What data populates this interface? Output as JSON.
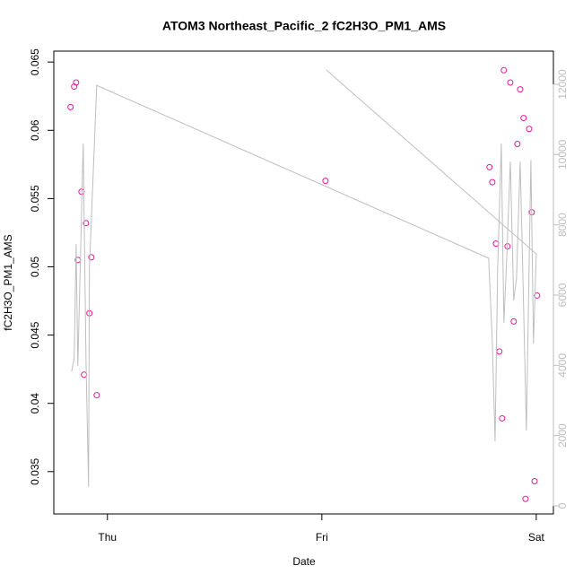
{
  "chart_data": {
    "type": "scatter",
    "title": "ATOM3 Northeast_Pacific_2 fC2H3O_PM1_AMS",
    "xlabel": "Date",
    "ylabel": "fC2H3O_PM1_AMS",
    "xlim": [
      -0.25,
      2.08
    ],
    "xticks": [
      {
        "value": 0,
        "label": "Thu"
      },
      {
        "value": 1,
        "label": "Fri"
      },
      {
        "value": 2,
        "label": "Sat"
      }
    ],
    "ylim": [
      0.0319,
      0.0658
    ],
    "yticks": [
      0.035,
      0.04,
      0.045,
      0.05,
      0.055,
      0.06,
      0.065
    ],
    "y2lim": [
      -230,
      12945
    ],
    "y2ticks": [
      0,
      2000,
      4000,
      6000,
      8000,
      10000,
      12000
    ],
    "y2_color": "#bebebe",
    "series": [
      {
        "type": "scatter",
        "color": "#e6199c",
        "x": [
          -0.172,
          -0.155,
          -0.146,
          -0.138,
          -0.121,
          -0.109,
          -0.1,
          -0.084,
          -0.075,
          -0.05,
          1.017,
          1.782,
          1.795,
          1.812,
          1.828,
          1.841,
          1.849,
          1.866,
          1.879,
          1.895,
          1.912,
          1.925,
          1.941,
          1.95,
          1.967,
          1.979,
          1.992,
          2.004
        ],
        "values": [
          0.0617,
          0.0632,
          0.0635,
          0.0505,
          0.0555,
          0.0421,
          0.0532,
          0.0466,
          0.0507,
          0.0406,
          0.0563,
          0.0573,
          0.0562,
          0.0517,
          0.0438,
          0.0389,
          0.0644,
          0.0515,
          0.0635,
          0.046,
          0.059,
          0.063,
          0.0609,
          0.033,
          0.0601,
          0.054,
          0.0343,
          0.0479
        ]
      },
      {
        "type": "line",
        "axis": "y2",
        "color": "#bebebe",
        "x": [
          -0.167,
          -0.155,
          -0.146,
          -0.138,
          -0.113,
          -0.1,
          -0.088,
          -0.084,
          -0.05,
          1.778,
          1.795,
          1.808,
          1.82,
          1.837,
          1.849,
          1.862,
          1.879,
          1.895,
          1.908,
          1.925,
          1.937,
          1.954,
          1.975,
          1.987,
          2.0,
          1.021
        ],
        "values": [
          3830,
          4190,
          7450,
          3980,
          10310,
          4190,
          540,
          6740,
          11970,
          7050,
          4700,
          1840,
          6740,
          10310,
          5210,
          7000,
          9800,
          5850,
          6480,
          9800,
          6740,
          2140,
          9850,
          4620,
          7170,
          12408
        ]
      }
    ]
  }
}
